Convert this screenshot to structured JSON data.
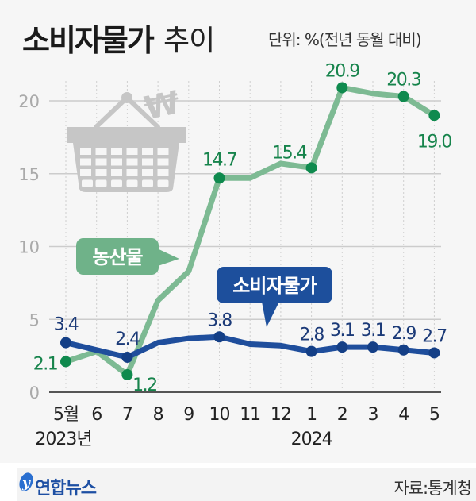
{
  "header": {
    "title_bold": "소비자물가",
    "title_light": "추이",
    "unit": "단위: %(전년 동월 대비)"
  },
  "footer": {
    "brand": "연합뉴스",
    "source": "자료:통계청"
  },
  "colors": {
    "agri_line": "#7dba93",
    "agri_dot": "#0f8a4e",
    "agri_label": "#17844c",
    "cpi_line": "#1f4e9c",
    "cpi_dot": "#143f86",
    "cpi_label": "#1b3a78",
    "grid": "#cccccc",
    "axis": "#555555",
    "tick_label": "#aaaaaa",
    "basket": "#c6c6c6"
  },
  "chart_data": {
    "type": "line",
    "title": "소비자물가 추이",
    "subtitle": "단위: %(전년 동월 대비)",
    "xlabel": "",
    "ylabel": "%",
    "ylim": [
      0,
      20
    ],
    "yticks": [
      0,
      5,
      10,
      15,
      20
    ],
    "grid": true,
    "categories": [
      "5월",
      "6",
      "7",
      "8",
      "9",
      "10",
      "11",
      "12",
      "1",
      "2",
      "3",
      "4",
      "5"
    ],
    "year_labels": [
      {
        "label": "2023년",
        "at_index": 0
      },
      {
        "label": "2024",
        "at_index": 8
      }
    ],
    "series": [
      {
        "name": "농산물",
        "values": [
          2.1,
          2.8,
          1.2,
          6.3,
          8.3,
          14.7,
          14.7,
          15.7,
          15.4,
          20.9,
          20.5,
          20.3,
          19.0
        ],
        "labeled_points": [
          0,
          2,
          5,
          8,
          9,
          11,
          12
        ],
        "dot_points": [
          0,
          2,
          5,
          8,
          9,
          11,
          12
        ]
      },
      {
        "name": "소비자물가",
        "values": [
          3.4,
          2.9,
          2.4,
          3.4,
          3.7,
          3.8,
          3.3,
          3.2,
          2.8,
          3.1,
          3.1,
          2.9,
          2.7
        ],
        "labeled_points": [
          0,
          2,
          5,
          8,
          9,
          10,
          11,
          12
        ],
        "dot_points": [
          0,
          2,
          5,
          8,
          9,
          10,
          11,
          12
        ]
      }
    ],
    "annotations": [
      {
        "text": "농산물",
        "type": "callout",
        "series": "농산물"
      },
      {
        "text": "소비자물가",
        "type": "callout",
        "series": "소비자물가"
      }
    ],
    "legend": "callouts"
  }
}
